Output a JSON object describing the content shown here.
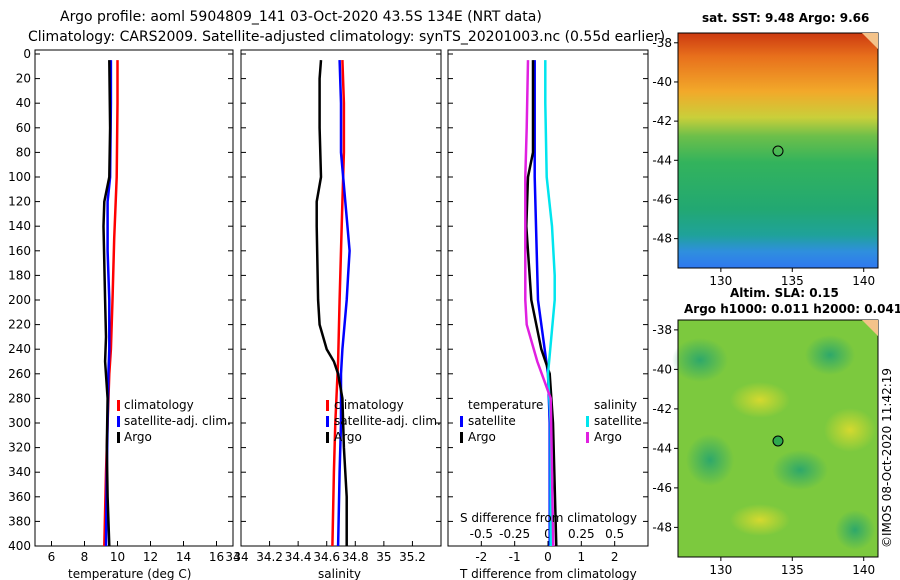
{
  "title_line1": "Argo profile: aoml 5904809_141 03-Oct-2020 43.5S 134E (NRT data)",
  "title_line2": "Climatology: CARS2009. Satellite-adjusted climatology: synTS_20201003.nc (0.55d earlier)",
  "copyright": "©IMOS 08-Oct-2020 11:42:19",
  "colors": {
    "climatology": "#ff0000",
    "satellite": "#0000ff",
    "argo": "#000000",
    "sat_salinity": "#00e5ee",
    "argo_salinity": "#e020e0"
  },
  "chart_data": [
    {
      "type": "line",
      "name": "temperature-profile",
      "xlabel": "temperature (deg C)",
      "ylabel": "depth",
      "xlim": [
        5,
        17
      ],
      "ylim": [
        400,
        0
      ],
      "xticks": [
        "6",
        "8",
        "10",
        "12",
        "14",
        "16"
      ],
      "xtick_values": [
        6,
        8,
        10,
        12,
        14,
        16
      ],
      "yticks": [
        "0",
        "20",
        "40",
        "60",
        "80",
        "100",
        "120",
        "140",
        "160",
        "180",
        "200",
        "220",
        "240",
        "260",
        "280",
        "300",
        "320",
        "340",
        "360",
        "380",
        "400"
      ],
      "ytick_values": [
        0,
        20,
        40,
        60,
        80,
        100,
        120,
        140,
        160,
        180,
        200,
        220,
        240,
        260,
        280,
        300,
        320,
        340,
        360,
        380,
        400
      ],
      "legend": [
        "climatology",
        "satellite-adj. clim.",
        "Argo"
      ],
      "series": [
        {
          "name": "climatology",
          "color": "#ff0000",
          "depth": [
            5,
            40,
            100,
            150,
            200,
            240,
            260,
            300,
            340,
            400
          ],
          "values": [
            10.0,
            10.0,
            9.95,
            9.8,
            9.7,
            9.6,
            9.5,
            9.4,
            9.3,
            9.2
          ]
        },
        {
          "name": "satellite-adj. clim.",
          "color": "#0000ff",
          "depth": [
            5,
            40,
            100,
            120,
            160,
            200,
            240,
            260,
            300,
            340,
            400
          ],
          "values": [
            9.6,
            9.6,
            9.55,
            9.4,
            9.4,
            9.5,
            9.5,
            9.45,
            9.4,
            9.35,
            9.3
          ]
        },
        {
          "name": "Argo",
          "color": "#000000",
          "depth": [
            5,
            60,
            100,
            120,
            140,
            200,
            230,
            250,
            280,
            320,
            360,
            400
          ],
          "values": [
            9.5,
            9.55,
            9.5,
            9.2,
            9.15,
            9.25,
            9.3,
            9.25,
            9.4,
            9.35,
            9.4,
            9.5
          ]
        }
      ]
    },
    {
      "type": "line",
      "name": "salinity-profile",
      "xlabel": "salinity",
      "ylabel": "depth",
      "xlim": [
        34.0,
        35.4
      ],
      "ylim": [
        400,
        0
      ],
      "xticks": [
        "34",
        "34.2",
        "34.4",
        "34.6",
        "34.8",
        "35",
        "35.2"
      ],
      "xtick_values": [
        34.0,
        34.2,
        34.4,
        34.6,
        34.8,
        35.0,
        35.2
      ],
      "legend": [
        "climatology",
        "satellite-adj. clim.",
        "Argo"
      ],
      "series": [
        {
          "name": "climatology",
          "color": "#ff0000",
          "depth": [
            5,
            40,
            80,
            120,
            160,
            200,
            250,
            300,
            340,
            400
          ],
          "values": [
            34.71,
            34.72,
            34.72,
            34.71,
            34.7,
            34.69,
            34.68,
            34.66,
            34.65,
            34.64
          ]
        },
        {
          "name": "satellite-adj. clim.",
          "color": "#0000ff",
          "depth": [
            5,
            40,
            80,
            120,
            160,
            180,
            200,
            240,
            260,
            300,
            340,
            400
          ],
          "values": [
            34.69,
            34.7,
            34.7,
            34.73,
            34.76,
            34.75,
            34.74,
            34.71,
            34.7,
            34.7,
            34.69,
            34.68
          ]
        },
        {
          "name": "Argo",
          "color": "#000000",
          "depth": [
            5,
            20,
            60,
            100,
            120,
            140,
            200,
            220,
            240,
            250,
            260,
            280,
            320,
            360,
            400
          ],
          "values": [
            34.56,
            34.55,
            34.55,
            34.56,
            34.53,
            34.53,
            34.54,
            34.55,
            34.6,
            34.65,
            34.68,
            34.71,
            34.72,
            34.74,
            34.74
          ]
        }
      ]
    },
    {
      "type": "line",
      "name": "difference-profile",
      "xlabel": "T difference from climatology",
      "x2label": "S difference from climatology",
      "xlim": [
        -3,
        3
      ],
      "x2lim": [
        -0.75,
        0.75
      ],
      "ylim": [
        400,
        0
      ],
      "xticks": [
        "-2",
        "-1",
        "0",
        "1",
        "2"
      ],
      "xtick_values": [
        -2,
        -1,
        0,
        1,
        2
      ],
      "x2ticks": [
        "-0.5",
        "-0.25",
        "0",
        "0.25",
        "0.5"
      ],
      "x2tick_values": [
        -0.5,
        -0.25,
        0,
        0.25,
        0.5
      ],
      "legend_left_title": "temperature",
      "legend_right_title": "salinity",
      "legend": [
        "satellite",
        "Argo",
        "satellite",
        "Argo"
      ],
      "series": [
        {
          "name": "T satellite",
          "color": "#0000ff",
          "depth": [
            5,
            100,
            200,
            260,
            300,
            400
          ],
          "values": [
            -0.4,
            -0.4,
            -0.3,
            0.0,
            0.05,
            0.05
          ]
        },
        {
          "name": "T Argo",
          "color": "#000000",
          "depth": [
            5,
            80,
            100,
            140,
            200,
            240,
            260,
            300,
            400
          ],
          "values": [
            -0.45,
            -0.45,
            -0.6,
            -0.65,
            -0.5,
            -0.2,
            0.05,
            0.15,
            0.25
          ]
        },
        {
          "name": "S satellite",
          "color": "#00e5ee",
          "depth": [
            5,
            40,
            100,
            140,
            180,
            200,
            260,
            300,
            400
          ],
          "values": [
            -0.02,
            -0.02,
            -0.01,
            0.03,
            0.05,
            0.05,
            0.0,
            0.02,
            0.02
          ]
        },
        {
          "name": "S Argo",
          "color": "#e020e0",
          "depth": [
            5,
            60,
            100,
            140,
            200,
            220,
            250,
            280,
            400
          ],
          "values": [
            -0.15,
            -0.16,
            -0.17,
            -0.17,
            -0.17,
            -0.16,
            -0.08,
            0.02,
            0.04
          ]
        }
      ]
    },
    {
      "type": "heatmap",
      "name": "sst-map",
      "title": "sat. SST: 9.48 Argo: 9.66",
      "xticks": [
        "130",
        "135",
        "140"
      ],
      "yticks": [
        "-38",
        "-40",
        "-42",
        "-44",
        "-46",
        "-48"
      ],
      "xlim": [
        127,
        141
      ],
      "ylim": [
        -49.5,
        -37.5
      ],
      "marker": {
        "lon": 134,
        "lat": -43.5
      }
    },
    {
      "type": "heatmap",
      "name": "sla-map",
      "title": "Altim. SLA: 0.15",
      "subtitle": "Argo h1000: 0.011 h2000: 0.041",
      "xticks": [
        "130",
        "135",
        "140"
      ],
      "yticks": [
        "-38",
        "-40",
        "-42",
        "-44",
        "-46",
        "-48"
      ],
      "xlim": [
        127,
        141
      ],
      "ylim": [
        -49.5,
        -37.5
      ],
      "marker": {
        "lon": 134,
        "lat": -43.5
      }
    }
  ]
}
